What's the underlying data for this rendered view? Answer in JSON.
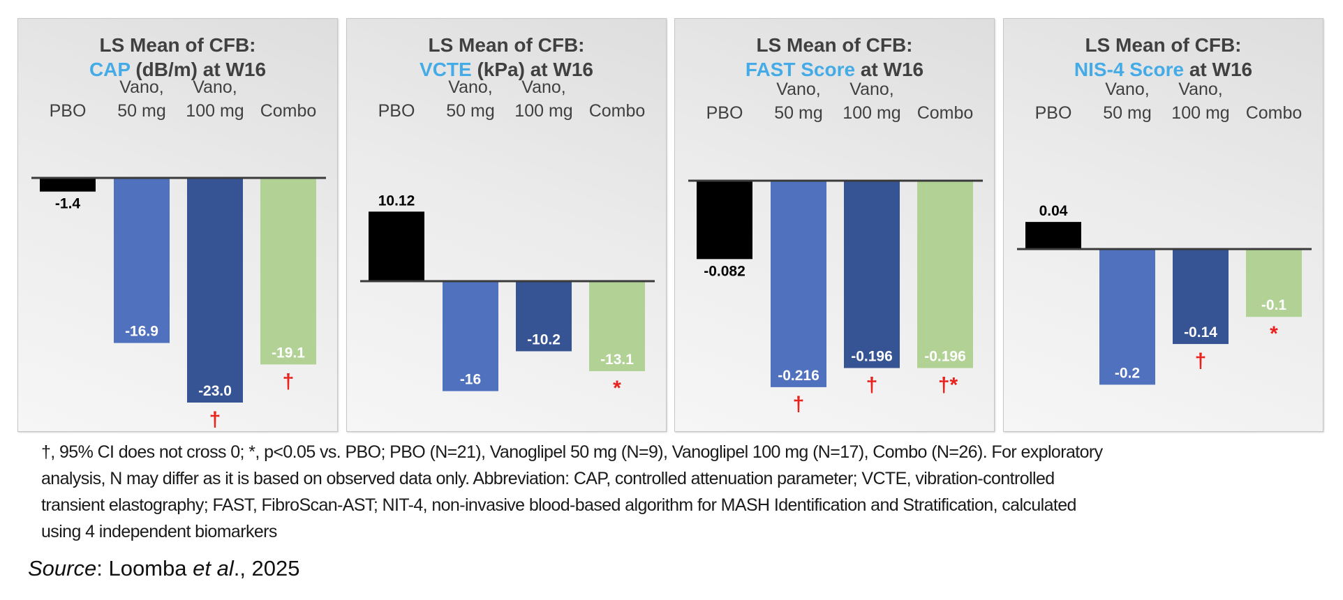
{
  "colors": {
    "PBO": "#000000",
    "Vano, 50 mg": "#4f71be",
    "Vano, 100 mg": "#365393",
    "Combo": "#b1d195",
    "title_accent": "#45abe6",
    "marker": "#e8231e"
  },
  "chart_data": [
    {
      "type": "bar",
      "title_prefix": "LS Mean of CFB:",
      "title_accent": "CAP",
      "title_suffix": " (dB/m) at W16",
      "categories": [
        [
          "PBO"
        ],
        [
          "Vano,",
          "50 mg"
        ],
        [
          "Vano,",
          "100 mg"
        ],
        [
          "Combo"
        ]
      ],
      "series_keys": [
        "PBO",
        "Vano, 50 mg",
        "Vano, 100 mg",
        "Combo"
      ],
      "values": [
        -1.4,
        -16.9,
        -23.0,
        -19.1
      ],
      "value_labels": [
        "-1.4",
        "-16.9",
        "-23.0",
        "-19.1"
      ],
      "markers": [
        "",
        "",
        "†",
        "†"
      ],
      "ylim": [
        -25,
        0
      ],
      "grid": false
    },
    {
      "type": "bar",
      "title_prefix": "LS Mean of CFB:",
      "title_accent": "VCTE",
      "title_suffix": " (kPa) at W16",
      "categories": [
        [
          "PBO"
        ],
        [
          "Vano,",
          "50 mg"
        ],
        [
          "Vano,",
          "100 mg"
        ],
        [
          "Combo"
        ]
      ],
      "series_keys": [
        "PBO",
        "Vano, 50 mg",
        "Vano, 100 mg",
        "Combo"
      ],
      "values": [
        10.12,
        -16,
        -10.2,
        -13.1
      ],
      "value_labels": [
        "10.12",
        "-16",
        "-10.2",
        "-13.1"
      ],
      "markers": [
        "",
        "",
        "",
        "*"
      ],
      "ylim": [
        -18,
        12
      ],
      "grid": false
    },
    {
      "type": "bar",
      "title_prefix": "LS Mean of CFB:",
      "title_accent": "FAST Score",
      "title_suffix": " at W16",
      "categories": [
        [
          "PBO"
        ],
        [
          "Vano,",
          "50 mg"
        ],
        [
          "Vano,",
          "100 mg"
        ],
        [
          "Combo"
        ]
      ],
      "series_keys": [
        "PBO",
        "Vano, 50 mg",
        "Vano, 100 mg",
        "Combo"
      ],
      "values": [
        -0.082,
        -0.216,
        -0.196,
        -0.196
      ],
      "value_labels": [
        "-0.082",
        "-0.216",
        "-0.196",
        "-0.196"
      ],
      "markers": [
        "",
        "†",
        "†",
        "†*"
      ],
      "ylim": [
        -0.24,
        0
      ],
      "grid": false
    },
    {
      "type": "bar",
      "title_prefix": "LS Mean of CFB:",
      "title_accent": "NIS-4 Score",
      "title_suffix": " at W16",
      "categories": [
        [
          "PBO"
        ],
        [
          "Vano,",
          "50 mg"
        ],
        [
          "Vano,",
          "100 mg"
        ],
        [
          "Combo"
        ]
      ],
      "series_keys": [
        "PBO",
        "Vano, 50 mg",
        "Vano, 100 mg",
        "Combo"
      ],
      "values": [
        0.04,
        -0.2,
        -0.14,
        -0.1
      ],
      "value_labels": [
        "0.04",
        "-0.2",
        "-0.14",
        "-0.1"
      ],
      "markers": [
        "",
        "",
        "†",
        "*"
      ],
      "ylim": [
        -0.22,
        0.06
      ],
      "grid": false
    }
  ],
  "footnote": {
    "lines": [
      "†, 95% CI does not cross 0; *, p<0.05 vs. PBO; PBO (N=21), Vanoglipel 50 mg (N=9), Vanoglipel 100 mg (N=17), Combo (N=26). For exploratory",
      "analysis, N may differ as it is based on observed data only. Abbreviation: CAP, controlled attenuation parameter; VCTE, vibration-controlled",
      "transient elastography; FAST, FibroScan-AST; NIT-4, non-invasive blood-based algorithm for MASH Identification and Stratification, calculated",
      "using 4 independent biomarkers"
    ]
  },
  "source": {
    "label": "Source",
    "sep": ": Loomba ",
    "etal": "et al",
    "year": "., 2025"
  }
}
